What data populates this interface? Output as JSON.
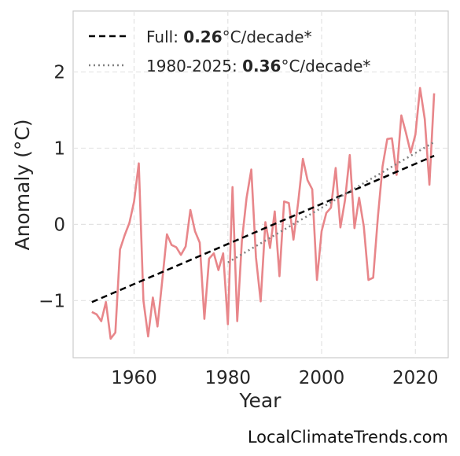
{
  "chart_data": {
    "type": "line",
    "xlabel": "Year",
    "ylabel": "Anomaly (°C)",
    "xlim": [
      1947,
      2027
    ],
    "ylim": [
      -1.75,
      2.8
    ],
    "xticks": [
      1960,
      1980,
      2000,
      2020
    ],
    "xtick_labels": [
      "1960",
      "1980",
      "2000",
      "2020"
    ],
    "yticks": [
      -1,
      0,
      1,
      2
    ],
    "ytick_labels": [
      "−1",
      "0",
      "1",
      "2"
    ],
    "grid": true,
    "legend_position": "top-left",
    "colors": {
      "series": "#e8868a",
      "full_trend": "#000000",
      "recent_trend": "#808080"
    },
    "series": [
      {
        "x": [
          1951,
          1952,
          1953,
          1954,
          1955,
          1956,
          1957,
          1958,
          1959,
          1960,
          1961,
          1962,
          1963,
          1964,
          1965,
          1966,
          1967,
          1968,
          1969,
          1970,
          1971,
          1972,
          1973,
          1974,
          1975,
          1976,
          1977,
          1978,
          1979,
          1980,
          1981,
          1982,
          1983,
          1984,
          1985,
          1986,
          1987,
          1988,
          1989,
          1990,
          1991,
          1992,
          1993,
          1994,
          1995,
          1996,
          1997,
          1998,
          1999,
          2000,
          2001,
          2002,
          2003,
          2004,
          2005,
          2006,
          2007,
          2008,
          2009,
          2010,
          2011,
          2012,
          2013,
          2014,
          2015,
          2016,
          2017,
          2018,
          2019,
          2020,
          2021,
          2022,
          2023,
          2024
        ],
        "y": [
          -1.15,
          -1.18,
          -1.27,
          -1.02,
          -1.5,
          -1.42,
          -0.33,
          -0.14,
          0.02,
          0.3,
          0.8,
          -1.0,
          -1.47,
          -0.96,
          -1.34,
          -0.74,
          -0.13,
          -0.27,
          -0.3,
          -0.4,
          -0.29,
          0.19,
          -0.09,
          -0.24,
          -1.24,
          -0.45,
          -0.38,
          -0.6,
          -0.38,
          -1.31,
          0.49,
          -1.27,
          -0.22,
          0.35,
          0.72,
          -0.43,
          -1.01,
          0.03,
          -0.31,
          0.17,
          -0.68,
          0.3,
          0.28,
          -0.2,
          0.29,
          0.86,
          0.58,
          0.46,
          -0.73,
          -0.09,
          0.15,
          0.22,
          0.74,
          -0.04,
          0.32,
          0.91,
          -0.05,
          0.35,
          -0.03,
          -0.73,
          -0.7,
          0.1,
          0.76,
          1.12,
          1.13,
          0.65,
          1.43,
          1.2,
          0.94,
          1.18,
          1.79,
          1.38,
          0.52,
          1.72
        ]
      }
    ],
    "trends": [
      {
        "name": "Full",
        "label_prefix": "Full: ",
        "label_value": "0.26",
        "label_suffix": "°C/decade*",
        "x": [
          1951,
          2024
        ],
        "y": [
          -1.02,
          0.9
        ],
        "style": "dashed"
      },
      {
        "name": "1980-2025",
        "label_prefix": "1980-2025: ",
        "label_value": "0.36",
        "label_suffix": "°C/decade*",
        "x": [
          1980,
          2024
        ],
        "y": [
          -0.5,
          1.08
        ],
        "style": "dotted"
      }
    ]
  },
  "watermark": "LocalClimateTrends.com"
}
